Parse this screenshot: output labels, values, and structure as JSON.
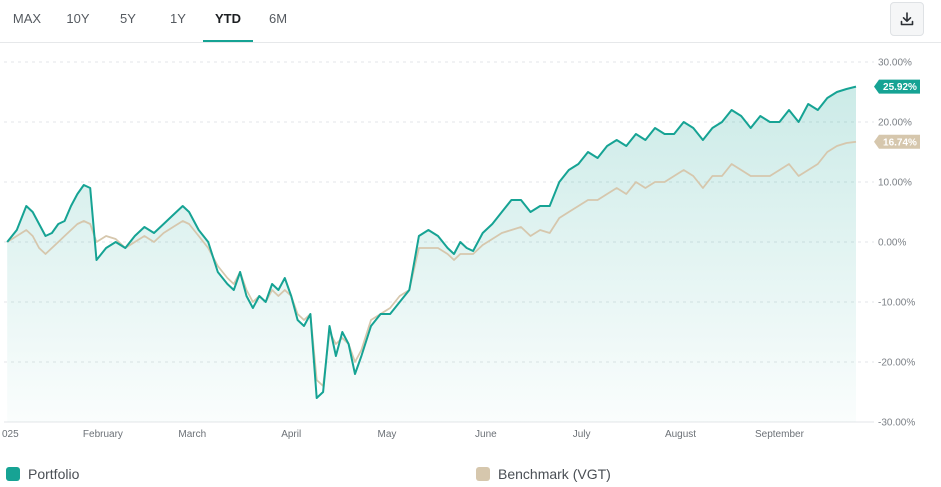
{
  "range_tabs": [
    {
      "label": "MAX",
      "active": false
    },
    {
      "label": "10Y",
      "active": false
    },
    {
      "label": "5Y",
      "active": false
    },
    {
      "label": "1Y",
      "active": false
    },
    {
      "label": "YTD",
      "active": true
    },
    {
      "label": "6M",
      "active": false
    }
  ],
  "toolbar": {
    "download_icon": "download-icon"
  },
  "legend": [
    {
      "label": "Portfolio",
      "color": "#16a394"
    },
    {
      "label": "Benchmark (VGT)",
      "color": "#d6c7ad"
    }
  ],
  "chart_data": {
    "type": "line",
    "title": "",
    "xlabel": "",
    "ylabel": "",
    "x_range": [
      "2025-01-01",
      "2025-09-30"
    ],
    "ylim": [
      -30,
      30
    ],
    "yticks": [
      30,
      20,
      10,
      0,
      -10,
      -20,
      -30
    ],
    "ytick_labels": [
      "30.00%",
      "20.00%",
      "10.00%",
      "0.00%",
      "-10.00%",
      "-20.00%",
      "-30.00%"
    ],
    "xtick_labels": [
      {
        "label": "025",
        "x": "2025-01-02"
      },
      {
        "label": "February",
        "x": "2025-02-01"
      },
      {
        "label": "March",
        "x": "2025-03-01"
      },
      {
        "label": "April",
        "x": "2025-04-01"
      },
      {
        "label": "May",
        "x": "2025-05-01"
      },
      {
        "label": "June",
        "x": "2025-06-01"
      },
      {
        "label": "July",
        "x": "2025-07-01"
      },
      {
        "label": "August",
        "x": "2025-08-01"
      },
      {
        "label": "September",
        "x": "2025-09-01"
      }
    ],
    "grid": true,
    "y_axis_position": "right",
    "series": [
      {
        "name": "Portfolio",
        "color": "#16a394",
        "end_label": "25.92%",
        "points": [
          [
            "2025-01-02",
            0
          ],
          [
            "2025-01-05",
            2
          ],
          [
            "2025-01-08",
            6
          ],
          [
            "2025-01-10",
            5
          ],
          [
            "2025-01-12",
            3
          ],
          [
            "2025-01-14",
            1
          ],
          [
            "2025-01-16",
            1.5
          ],
          [
            "2025-01-18",
            3
          ],
          [
            "2025-01-20",
            3.5
          ],
          [
            "2025-01-22",
            6
          ],
          [
            "2025-01-24",
            8
          ],
          [
            "2025-01-26",
            9.5
          ],
          [
            "2025-01-28",
            9
          ],
          [
            "2025-01-30",
            -3
          ],
          [
            "2025-02-02",
            -1
          ],
          [
            "2025-02-05",
            0
          ],
          [
            "2025-02-08",
            -1
          ],
          [
            "2025-02-11",
            1
          ],
          [
            "2025-02-14",
            2.5
          ],
          [
            "2025-02-17",
            1.5
          ],
          [
            "2025-02-20",
            3
          ],
          [
            "2025-02-23",
            4.5
          ],
          [
            "2025-02-26",
            6
          ],
          [
            "2025-02-28",
            5
          ],
          [
            "2025-03-03",
            2
          ],
          [
            "2025-03-06",
            0
          ],
          [
            "2025-03-09",
            -5
          ],
          [
            "2025-03-12",
            -7
          ],
          [
            "2025-03-14",
            -8
          ],
          [
            "2025-03-16",
            -5
          ],
          [
            "2025-03-18",
            -9
          ],
          [
            "2025-03-20",
            -11
          ],
          [
            "2025-03-22",
            -9
          ],
          [
            "2025-03-24",
            -10
          ],
          [
            "2025-03-26",
            -7
          ],
          [
            "2025-03-28",
            -8
          ],
          [
            "2025-03-30",
            -6
          ],
          [
            "2025-04-01",
            -9
          ],
          [
            "2025-04-03",
            -13
          ],
          [
            "2025-04-05",
            -14
          ],
          [
            "2025-04-07",
            -12
          ],
          [
            "2025-04-09",
            -26
          ],
          [
            "2025-04-11",
            -25
          ],
          [
            "2025-04-13",
            -14
          ],
          [
            "2025-04-15",
            -19
          ],
          [
            "2025-04-17",
            -15
          ],
          [
            "2025-04-19",
            -17
          ],
          [
            "2025-04-21",
            -22
          ],
          [
            "2025-04-23",
            -19
          ],
          [
            "2025-04-26",
            -14
          ],
          [
            "2025-04-29",
            -12
          ],
          [
            "2025-05-02",
            -12
          ],
          [
            "2025-05-05",
            -10
          ],
          [
            "2025-05-08",
            -8
          ],
          [
            "2025-05-11",
            1
          ],
          [
            "2025-05-14",
            2
          ],
          [
            "2025-05-17",
            1
          ],
          [
            "2025-05-20",
            -1
          ],
          [
            "2025-05-22",
            -2
          ],
          [
            "2025-05-24",
            0
          ],
          [
            "2025-05-26",
            -1
          ],
          [
            "2025-05-28",
            -1.5
          ],
          [
            "2025-05-31",
            1.5
          ],
          [
            "2025-06-03",
            3
          ],
          [
            "2025-06-06",
            5
          ],
          [
            "2025-06-09",
            7
          ],
          [
            "2025-06-12",
            7
          ],
          [
            "2025-06-15",
            5
          ],
          [
            "2025-06-18",
            6
          ],
          [
            "2025-06-21",
            6
          ],
          [
            "2025-06-24",
            10
          ],
          [
            "2025-06-27",
            12
          ],
          [
            "2025-06-30",
            13
          ],
          [
            "2025-07-03",
            15
          ],
          [
            "2025-07-06",
            14
          ],
          [
            "2025-07-09",
            16
          ],
          [
            "2025-07-12",
            17
          ],
          [
            "2025-07-15",
            16
          ],
          [
            "2025-07-18",
            18
          ],
          [
            "2025-07-21",
            17
          ],
          [
            "2025-07-24",
            19
          ],
          [
            "2025-07-27",
            18
          ],
          [
            "2025-07-30",
            18
          ],
          [
            "2025-08-02",
            20
          ],
          [
            "2025-08-05",
            19
          ],
          [
            "2025-08-08",
            17
          ],
          [
            "2025-08-11",
            19
          ],
          [
            "2025-08-14",
            20
          ],
          [
            "2025-08-17",
            22
          ],
          [
            "2025-08-20",
            21
          ],
          [
            "2025-08-23",
            19
          ],
          [
            "2025-08-26",
            21
          ],
          [
            "2025-08-29",
            20
          ],
          [
            "2025-09-01",
            20
          ],
          [
            "2025-09-04",
            22
          ],
          [
            "2025-09-07",
            20
          ],
          [
            "2025-09-10",
            23
          ],
          [
            "2025-09-13",
            22
          ],
          [
            "2025-09-16",
            24
          ],
          [
            "2025-09-19",
            25
          ],
          [
            "2025-09-22",
            25.5
          ],
          [
            "2025-09-25",
            25.9
          ]
        ]
      },
      {
        "name": "Benchmark (VGT)",
        "color": "#d6c7ad",
        "end_label": "16.74%",
        "points": [
          [
            "2025-01-02",
            0
          ],
          [
            "2025-01-05",
            1
          ],
          [
            "2025-01-08",
            2
          ],
          [
            "2025-01-10",
            1
          ],
          [
            "2025-01-12",
            -1
          ],
          [
            "2025-01-14",
            -2
          ],
          [
            "2025-01-16",
            -1
          ],
          [
            "2025-01-18",
            0
          ],
          [
            "2025-01-20",
            1
          ],
          [
            "2025-01-22",
            2
          ],
          [
            "2025-01-24",
            3
          ],
          [
            "2025-01-26",
            3.5
          ],
          [
            "2025-01-28",
            3
          ],
          [
            "2025-01-30",
            0
          ],
          [
            "2025-02-02",
            1
          ],
          [
            "2025-02-05",
            0.5
          ],
          [
            "2025-02-08",
            -1
          ],
          [
            "2025-02-11",
            0
          ],
          [
            "2025-02-14",
            1
          ],
          [
            "2025-02-17",
            0
          ],
          [
            "2025-02-20",
            1.5
          ],
          [
            "2025-02-23",
            2.5
          ],
          [
            "2025-02-26",
            3.5
          ],
          [
            "2025-02-28",
            3
          ],
          [
            "2025-03-03",
            1
          ],
          [
            "2025-03-06",
            -1
          ],
          [
            "2025-03-09",
            -4
          ],
          [
            "2025-03-12",
            -6
          ],
          [
            "2025-03-14",
            -7
          ],
          [
            "2025-03-16",
            -5
          ],
          [
            "2025-03-18",
            -8
          ],
          [
            "2025-03-20",
            -10
          ],
          [
            "2025-03-22",
            -9
          ],
          [
            "2025-03-24",
            -10
          ],
          [
            "2025-03-26",
            -8
          ],
          [
            "2025-03-28",
            -9
          ],
          [
            "2025-03-30",
            -8
          ],
          [
            "2025-04-01",
            -9
          ],
          [
            "2025-04-03",
            -12
          ],
          [
            "2025-04-05",
            -13
          ],
          [
            "2025-04-07",
            -12
          ],
          [
            "2025-04-09",
            -23
          ],
          [
            "2025-04-11",
            -24
          ],
          [
            "2025-04-13",
            -15
          ],
          [
            "2025-04-15",
            -17
          ],
          [
            "2025-04-17",
            -16
          ],
          [
            "2025-04-19",
            -17
          ],
          [
            "2025-04-21",
            -20
          ],
          [
            "2025-04-23",
            -18
          ],
          [
            "2025-04-26",
            -13
          ],
          [
            "2025-04-29",
            -12
          ],
          [
            "2025-05-02",
            -11
          ],
          [
            "2025-05-05",
            -9
          ],
          [
            "2025-05-08",
            -8
          ],
          [
            "2025-05-11",
            -1
          ],
          [
            "2025-05-14",
            -1
          ],
          [
            "2025-05-17",
            -1
          ],
          [
            "2025-05-20",
            -2
          ],
          [
            "2025-05-22",
            -3
          ],
          [
            "2025-05-24",
            -2
          ],
          [
            "2025-05-26",
            -2
          ],
          [
            "2025-05-28",
            -2
          ],
          [
            "2025-05-31",
            -0.5
          ],
          [
            "2025-06-03",
            0.5
          ],
          [
            "2025-06-06",
            1.5
          ],
          [
            "2025-06-09",
            2
          ],
          [
            "2025-06-12",
            2.5
          ],
          [
            "2025-06-15",
            1
          ],
          [
            "2025-06-18",
            2
          ],
          [
            "2025-06-21",
            1.5
          ],
          [
            "2025-06-24",
            4
          ],
          [
            "2025-06-27",
            5
          ],
          [
            "2025-06-30",
            6
          ],
          [
            "2025-07-03",
            7
          ],
          [
            "2025-07-06",
            7
          ],
          [
            "2025-07-09",
            8
          ],
          [
            "2025-07-12",
            9
          ],
          [
            "2025-07-15",
            8
          ],
          [
            "2025-07-18",
            10
          ],
          [
            "2025-07-21",
            9
          ],
          [
            "2025-07-24",
            10
          ],
          [
            "2025-07-27",
            10
          ],
          [
            "2025-07-30",
            11
          ],
          [
            "2025-08-02",
            12
          ],
          [
            "2025-08-05",
            11
          ],
          [
            "2025-08-08",
            9
          ],
          [
            "2025-08-11",
            11
          ],
          [
            "2025-08-14",
            11
          ],
          [
            "2025-08-17",
            13
          ],
          [
            "2025-08-20",
            12
          ],
          [
            "2025-08-23",
            11
          ],
          [
            "2025-08-26",
            11
          ],
          [
            "2025-08-29",
            11
          ],
          [
            "2025-09-01",
            12
          ],
          [
            "2025-09-04",
            13
          ],
          [
            "2025-09-07",
            11
          ],
          [
            "2025-09-10",
            12
          ],
          [
            "2025-09-13",
            13
          ],
          [
            "2025-09-16",
            15
          ],
          [
            "2025-09-19",
            16
          ],
          [
            "2025-09-22",
            16.5
          ],
          [
            "2025-09-25",
            16.7
          ]
        ]
      }
    ]
  }
}
